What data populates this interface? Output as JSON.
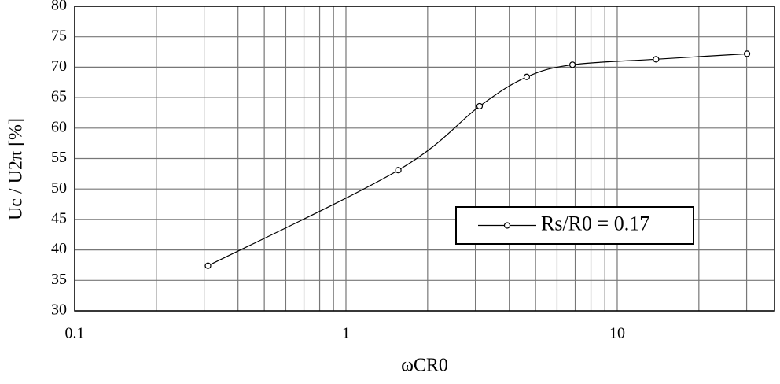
{
  "chart_data": {
    "type": "line",
    "x_label": "ωCR0",
    "y_label": "Uc / U2π  [%]",
    "x_scale": "log",
    "xlim": [
      0.1,
      38
    ],
    "xticks": [
      0.1,
      1,
      10
    ],
    "xminorticks": [
      0.2,
      0.3,
      0.4,
      0.5,
      0.6,
      0.7,
      0.8,
      0.9,
      2,
      3,
      4,
      5,
      6,
      7,
      8,
      9,
      20,
      30
    ],
    "ylim": [
      30,
      80
    ],
    "yticks": [
      30,
      35,
      40,
      45,
      50,
      55,
      60,
      65,
      70,
      75,
      80
    ],
    "grid": true,
    "legend_position": "lower right",
    "x": [
      0.31,
      1.56,
      3.11,
      4.64,
      6.84,
      13.9,
      30.1
    ],
    "series": [
      {
        "name": "Rs/R0 = 0.17",
        "color": "#000000",
        "values": [
          37.4,
          53.1,
          63.6,
          68.4,
          70.4,
          71.3,
          72.2
        ]
      }
    ]
  }
}
